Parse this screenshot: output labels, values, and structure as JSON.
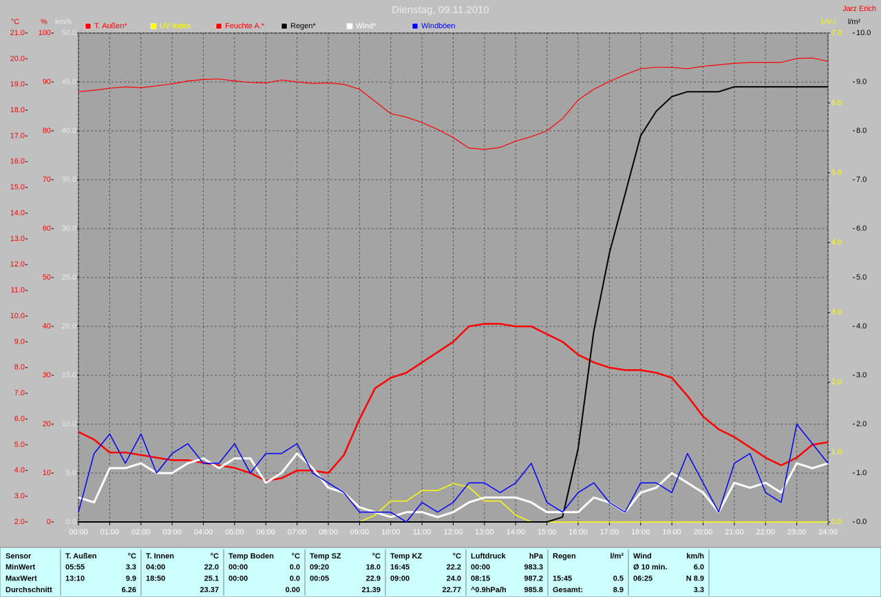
{
  "chart_data": {
    "type": "line",
    "title": "Dienstag, 09.11.2010",
    "author": "Jarz Erich",
    "x": [
      0,
      0.5,
      1,
      1.5,
      2,
      2.5,
      3,
      3.5,
      4,
      4.5,
      5,
      5.5,
      6,
      6.5,
      7,
      7.5,
      8,
      8.5,
      9,
      9.5,
      10,
      10.5,
      11,
      11.5,
      12,
      12.5,
      13,
      13.5,
      14,
      14.5,
      15,
      15.5,
      16,
      16.5,
      17,
      17.5,
      18,
      18.5,
      19,
      19.5,
      20,
      20.5,
      21,
      21.5,
      22,
      22.5,
      23,
      23.5,
      24
    ],
    "xlim": [
      0,
      24
    ],
    "xticks": [
      {
        "value": 0,
        "label": "00:00"
      },
      {
        "value": 1,
        "label": "01:00"
      },
      {
        "value": 2,
        "label": "02:00"
      },
      {
        "value": 3,
        "label": "03:00"
      },
      {
        "value": 4,
        "label": "04:00"
      },
      {
        "value": 5,
        "label": "05:00"
      },
      {
        "value": 6,
        "label": "06:00"
      },
      {
        "value": 7,
        "label": "07:00"
      },
      {
        "value": 8,
        "label": "08:00"
      },
      {
        "value": 9,
        "label": "09:00"
      },
      {
        "value": 10,
        "label": "10:00"
      },
      {
        "value": 11,
        "label": "11:00"
      },
      {
        "value": 12,
        "label": "12:00"
      },
      {
        "value": 13,
        "label": "13:00"
      },
      {
        "value": 14,
        "label": "14:00"
      },
      {
        "value": 15,
        "label": "15:00"
      },
      {
        "value": 16,
        "label": "16:00"
      },
      {
        "value": 17,
        "label": "17:00"
      },
      {
        "value": 18,
        "label": "18:00"
      },
      {
        "value": 19,
        "label": "19:00"
      },
      {
        "value": 20,
        "label": "20:00"
      },
      {
        "value": 21,
        "label": "21:00"
      },
      {
        "value": 22,
        "label": "22:00"
      },
      {
        "value": 23,
        "label": "23:00"
      },
      {
        "value": 24,
        "label": "24:00"
      }
    ],
    "axes": [
      {
        "label": "°C",
        "color": "#ff0000",
        "side": "left",
        "lim": [
          2,
          21
        ],
        "ticks": [
          {
            "value": 2,
            "label": "2.0"
          },
          {
            "value": 3,
            "label": "3.0"
          },
          {
            "value": 4,
            "label": "4.0"
          },
          {
            "value": 5,
            "label": "5.0"
          },
          {
            "value": 6,
            "label": "6.0"
          },
          {
            "value": 7,
            "label": "7.0"
          },
          {
            "value": 8,
            "label": "8.0"
          },
          {
            "value": 9,
            "label": "9.0"
          },
          {
            "value": 10,
            "label": "10.0"
          },
          {
            "value": 11,
            "label": "11.0"
          },
          {
            "value": 12,
            "label": "12.0"
          },
          {
            "value": 13,
            "label": "13.0"
          },
          {
            "value": 14,
            "label": "14.0"
          },
          {
            "value": 15,
            "label": "15.0"
          },
          {
            "value": 16,
            "label": "16.0"
          },
          {
            "value": 17,
            "label": "17.0"
          },
          {
            "value": 18,
            "label": "18.0"
          },
          {
            "value": 19,
            "label": "19.0"
          },
          {
            "value": 20,
            "label": "20.0"
          },
          {
            "value": 21,
            "label": "21.0"
          }
        ]
      },
      {
        "label": "%",
        "color": "#ff0000",
        "side": "left",
        "lim": [
          0,
          100
        ],
        "ticks": [
          0,
          10,
          20,
          30,
          40,
          50,
          60,
          70,
          80,
          90,
          100
        ]
      },
      {
        "label": "km/h",
        "color": "#e8e8e8",
        "side": "left",
        "grid": true,
        "lim": [
          0,
          50
        ],
        "ticks": [
          {
            "value": 0,
            "label": "0.0"
          },
          {
            "value": 5,
            "label": "5.0"
          },
          {
            "value": 10,
            "label": "10.0"
          },
          {
            "value": 15,
            "label": "15.0"
          },
          {
            "value": 20,
            "label": "20.0"
          },
          {
            "value": 25,
            "label": "25.0"
          },
          {
            "value": 30,
            "label": "30.0"
          },
          {
            "value": 35,
            "label": "35.0"
          },
          {
            "value": 40,
            "label": "40.0"
          },
          {
            "value": 45,
            "label": "45.0"
          },
          {
            "value": 50,
            "label": "50.0"
          }
        ]
      },
      {
        "label": "UV-I",
        "color": "#ffff00",
        "side": "right",
        "lim": [
          0,
          7
        ],
        "ticks": [
          {
            "value": 0,
            "label": "0.0"
          },
          {
            "value": 1,
            "label": "1.0"
          },
          {
            "value": 2,
            "label": "2.0"
          },
          {
            "value": 3,
            "label": "3.0"
          },
          {
            "value": 4,
            "label": "4.0"
          },
          {
            "value": 5,
            "label": "5.0"
          },
          {
            "value": 6,
            "label": "6.0"
          },
          {
            "value": 7,
            "label": "7.0"
          }
        ]
      },
      {
        "label": "l/m²",
        "color": "#000000",
        "side": "right",
        "lim": [
          0,
          10
        ],
        "ticks": [
          {
            "value": 0,
            "label": "0.0"
          },
          {
            "value": 1,
            "label": "1.0"
          },
          {
            "value": 2,
            "label": "2.0"
          },
          {
            "value": 3,
            "label": "3.0"
          },
          {
            "value": 4,
            "label": "4.0"
          },
          {
            "value": 5,
            "label": "5.0"
          },
          {
            "value": 6,
            "label": "6.0"
          },
          {
            "value": 7,
            "label": "7.0"
          },
          {
            "value": 8,
            "label": "8.0"
          },
          {
            "value": 9,
            "label": "9.0"
          },
          {
            "value": 10,
            "label": "10.0"
          }
        ]
      }
    ],
    "series": [
      {
        "name": "T. Außen*",
        "color": "#ff0000",
        "axis": 0,
        "width": 2.5,
        "values": [
          5.5,
          5.2,
          4.7,
          4.7,
          4.6,
          4.5,
          4.4,
          4.4,
          4.3,
          4.2,
          4.1,
          3.9,
          3.6,
          3.7,
          4.0,
          4.0,
          3.9,
          4.6,
          6.0,
          7.2,
          7.6,
          7.8,
          8.2,
          8.6,
          9.0,
          9.6,
          9.7,
          9.7,
          9.6,
          9.6,
          9.3,
          9.0,
          8.5,
          8.2,
          8.0,
          7.9,
          7.9,
          7.8,
          7.6,
          6.9,
          6.1,
          5.6,
          5.3,
          4.9,
          4.5,
          4.2,
          4.5,
          5.0,
          5.1
        ]
      },
      {
        "name": "UV Index",
        "color": "#ffff00",
        "axis": 3,
        "width": 1.5,
        "values": [
          0,
          0,
          0,
          0,
          0,
          0,
          0,
          0,
          0,
          0,
          0,
          0,
          0,
          0,
          0,
          0,
          0,
          0,
          0,
          0.1,
          0.3,
          0.3,
          0.45,
          0.45,
          0.55,
          0.5,
          0.3,
          0.3,
          0.1,
          0,
          0,
          0,
          0,
          0,
          0,
          0,
          0,
          0,
          0,
          0,
          0,
          0,
          0,
          0,
          0,
          0,
          0,
          0,
          0
        ]
      },
      {
        "name": "Feuchte A.*",
        "color": "#ff0000",
        "axis": 1,
        "width": 1.2,
        "values": [
          88,
          88.3,
          88.7,
          89,
          88.8,
          89.2,
          89.6,
          90.2,
          90.5,
          90.6,
          90.2,
          89.9,
          89.8,
          90.4,
          90,
          89.7,
          89.8,
          89.5,
          88.5,
          86,
          83.5,
          82.8,
          81.7,
          80.3,
          78.6,
          76.5,
          76.2,
          76.6,
          77.9,
          78.8,
          80,
          82.5,
          86.3,
          88.5,
          90.1,
          91.5,
          92.7,
          93,
          93,
          92.7,
          93.2,
          93.5,
          93.8,
          94,
          94,
          94,
          94.8,
          94.9,
          94.2
        ]
      },
      {
        "name": "Regen*",
        "color": "#000000",
        "axis": 4,
        "width": 2,
        "values": [
          0,
          0,
          0,
          0,
          0,
          0,
          0,
          0,
          0,
          0,
          0,
          0,
          0,
          0,
          0,
          0,
          0,
          0,
          0,
          0,
          0,
          0,
          0,
          0,
          0,
          0,
          0,
          0,
          0,
          0,
          0,
          0.1,
          1.5,
          3.9,
          5.5,
          6.7,
          7.9,
          8.4,
          8.7,
          8.8,
          8.8,
          8.8,
          8.9,
          8.9,
          8.9,
          8.9,
          8.9,
          8.9,
          8.9
        ]
      },
      {
        "name": "Wind*",
        "color": "#ffffff",
        "axis": 2,
        "width": 3,
        "values": [
          2.5,
          2,
          5.5,
          5.5,
          6,
          5,
          5,
          6,
          6.5,
          5.5,
          6.5,
          6.5,
          4,
          5,
          7,
          5.5,
          3.5,
          3,
          1.5,
          1,
          0.5,
          1,
          1,
          0.5,
          1,
          2,
          2.5,
          2.5,
          2.5,
          2,
          1,
          1,
          1,
          2.5,
          2,
          1,
          3,
          3.5,
          5,
          4,
          3,
          1,
          4,
          3.5,
          4,
          3,
          6,
          5.5,
          6
        ]
      },
      {
        "name": "Windböen",
        "color": "#0000ff",
        "axis": 2,
        "width": 1.5,
        "values": [
          1,
          7,
          9,
          6,
          9,
          5,
          7,
          8,
          6,
          6,
          8,
          5,
          7,
          7,
          8,
          5,
          4,
          3,
          1,
          1,
          1,
          0,
          2,
          1,
          2,
          4,
          4,
          3,
          4,
          6,
          2,
          1,
          3,
          4,
          2,
          1,
          4,
          4,
          3,
          7,
          4,
          1,
          6,
          7,
          3,
          2,
          10,
          8,
          6
        ]
      }
    ]
  },
  "table": {
    "header": [
      "Sensor",
      "T. Außen",
      "°C",
      "T. Innen",
      "°C",
      "Temp Boden",
      "°C",
      "Temp SZ",
      "°C",
      "Temp KZ",
      "°C",
      "Luftdruck",
      "hPa",
      "Regen",
      "l/m²",
      "Wind",
      "km/h"
    ],
    "rows": [
      [
        "MinWert",
        "05:55",
        "3.3",
        "04:00",
        "22.0",
        "00:00",
        "0.0",
        "09:20",
        "18.0",
        "16:45",
        "22.2",
        "00:00",
        "983.3",
        null,
        null,
        "Ø 10 min.",
        "6.0"
      ],
      [
        "MaxWert",
        "13:10",
        "9.9",
        "18:50",
        "25.1",
        "00:00",
        "0.0",
        "00:05",
        "22.9",
        "09:00",
        "24.0",
        "08:15",
        "987.2",
        "15:45",
        "0.5",
        "06:25",
        "N 8.9"
      ],
      [
        "Durchschnitt",
        null,
        "6.26",
        null,
        "23.37",
        null,
        "0.00",
        null,
        "21.39",
        null,
        "22.77",
        "^0.9hPa/h",
        "985.8",
        "Gesamt:",
        "8.9",
        null,
        "3.3"
      ]
    ]
  }
}
